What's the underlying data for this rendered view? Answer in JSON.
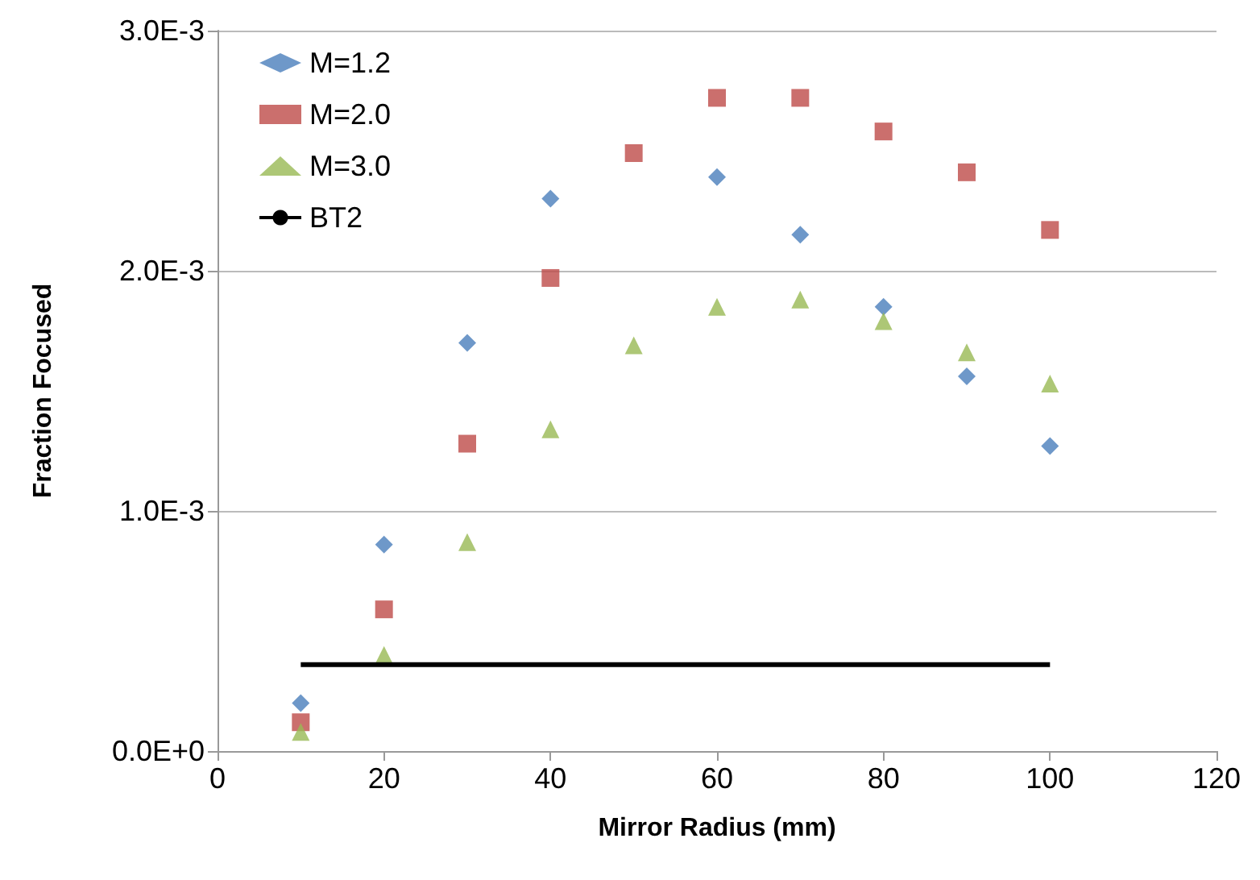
{
  "chart_data": {
    "type": "scatter",
    "xlabel": "Mirror Radius (mm)",
    "ylabel": "Fraction Focused",
    "x": [
      10,
      20,
      30,
      40,
      50,
      60,
      70,
      80,
      90,
      100
    ],
    "series": [
      {
        "name": "M=1.2",
        "color": "#4a7ebb",
        "marker": "diamond",
        "values": [
          0.0002,
          0.00086,
          0.0017,
          0.0023,
          null,
          0.00239,
          0.00215,
          0.00185,
          0.00156,
          0.00127
        ]
      },
      {
        "name": "M=2.0",
        "color": "#be4b48",
        "marker": "square",
        "values": [
          0.00012,
          0.00059,
          0.00128,
          0.00197,
          0.00249,
          0.00272,
          0.00272,
          0.00258,
          0.00241,
          0.00217
        ]
      },
      {
        "name": "M=3.0",
        "color": "#98b954",
        "marker": "triangle",
        "values": [
          8e-05,
          0.0004,
          0.00087,
          0.00134,
          0.00169,
          0.00185,
          0.00188,
          0.00179,
          0.00166,
          0.00153
        ]
      },
      {
        "name": "BT2",
        "type": "line",
        "color": "#000000",
        "marker": "none",
        "line_style": "solid",
        "x": [
          10,
          100
        ],
        "values": [
          0.00036,
          0.00036
        ]
      }
    ],
    "xlim": [
      0,
      120
    ],
    "xticks": [
      0,
      20,
      40,
      60,
      80,
      100,
      120
    ],
    "ylim": [
      0,
      0.003
    ],
    "yticks": [
      {
        "value": 0,
        "label": "0.0E+0"
      },
      {
        "value": 0.001,
        "label": "1.0E-3"
      },
      {
        "value": 0.002,
        "label": "2.0E-3"
      },
      {
        "value": 0.003,
        "label": "3.0E-3"
      }
    ],
    "grid": "y",
    "legend": "top left"
  }
}
